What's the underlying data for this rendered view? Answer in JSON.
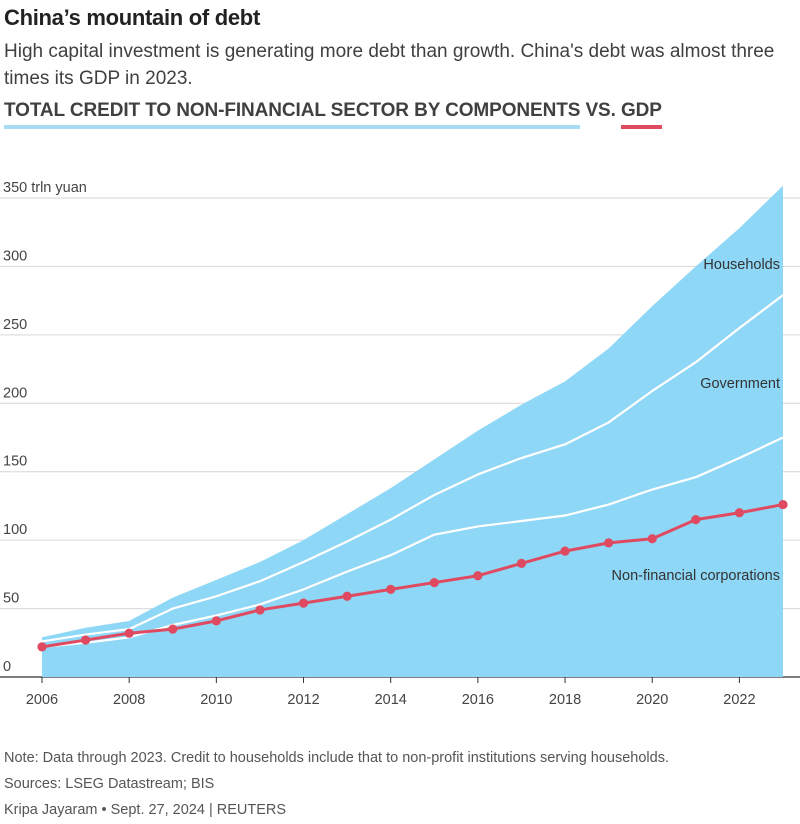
{
  "header": {
    "title": "China’s mountain of debt",
    "subtitle": "High capital investment is generating more debt than growth. China's debt was almost three times its GDP in 2023.",
    "heading_credit": "TOTAL CREDIT TO NON-FINANCIAL SECTOR BY COMPONENTS",
    "heading_vs": " VS. ",
    "heading_gdp": "GDP"
  },
  "colors": {
    "area": "#8fd7f6",
    "boundary": "#ffffff",
    "gdp": "#df4a61",
    "grid": "#d6d6d6",
    "credit_underline": "#a6dcf2",
    "gdp_underline": "#e04a5f"
  },
  "chart_data": {
    "type": "area",
    "ylabel": "trln yuan",
    "ylim": [
      0,
      350
    ],
    "y_ticks": [
      0,
      50,
      100,
      150,
      200,
      250,
      300,
      350
    ],
    "y_tick_labels": [
      "0",
      "50",
      "100",
      "150",
      "200",
      "250",
      "300",
      "350 trln yuan"
    ],
    "x_ticks": [
      2006,
      2008,
      2010,
      2012,
      2014,
      2016,
      2018,
      2020,
      2022
    ],
    "x_tick_labels": [
      "2006",
      "2008",
      "2010",
      "2012",
      "2014",
      "2016",
      "2018",
      "2020",
      "2022"
    ],
    "x": [
      2006,
      2007,
      2008,
      2009,
      2010,
      2011,
      2012,
      2013,
      2014,
      2015,
      2016,
      2017,
      2018,
      2019,
      2020,
      2021,
      2022,
      2023
    ],
    "stacked_series": [
      {
        "name": "Non-financial corporations",
        "values": [
          22,
          25,
          29,
          38,
          45,
          53,
          64,
          77,
          89,
          104,
          110,
          114,
          118,
          126,
          137,
          146,
          160,
          175
        ]
      },
      {
        "name": "Government",
        "values": [
          4,
          6,
          6,
          12,
          14,
          17,
          20,
          22,
          26,
          29,
          38,
          46,
          52,
          60,
          72,
          84,
          95,
          104
        ]
      },
      {
        "name": "Households",
        "values": [
          3,
          5,
          6,
          8,
          12,
          14,
          16,
          20,
          23,
          26,
          32,
          39,
          46,
          54,
          62,
          70,
          73,
          80
        ]
      }
    ],
    "line_series": [
      {
        "name": "GDP",
        "values": [
          22,
          27,
          32,
          35,
          41,
          49,
          54,
          59,
          64,
          69,
          74,
          83,
          92,
          98,
          101,
          115,
          120,
          126
        ]
      }
    ],
    "area_labels": [
      "Households",
      "Government",
      "Non-financial corporations"
    ],
    "grid": true
  },
  "footer": {
    "note": "Note: Data through 2023. Credit to households include that to non-profit institutions serving households.",
    "sources": "Sources: LSEG Datastream; BIS",
    "credit": "Kripa Jayaram • Sept. 27, 2024 | REUTERS"
  }
}
